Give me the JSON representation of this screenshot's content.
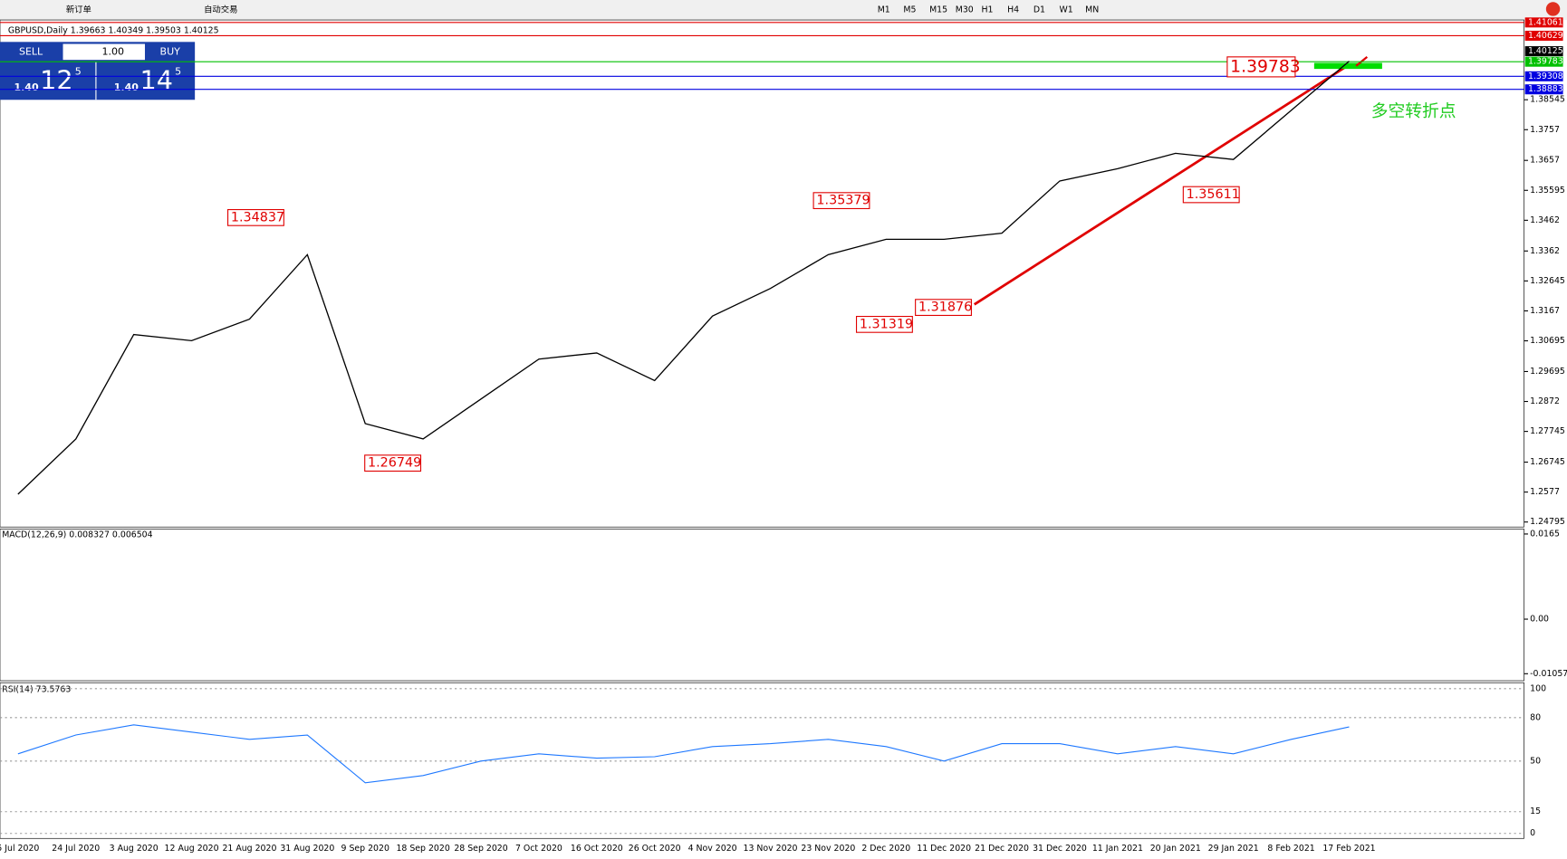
{
  "toolbar": {
    "new_order": "新订单",
    "auto_trade": "自动交易",
    "timeframes": [
      "M1",
      "M5",
      "M15",
      "M30",
      "H1",
      "H4",
      "D1",
      "W1",
      "MN"
    ]
  },
  "trade_panel": {
    "sell": "SELL",
    "buy": "BUY",
    "volume": "1.00",
    "sell_big": "1.40",
    "sell_pips": "12",
    "sell_frac": "5",
    "buy_big": "1.40",
    "buy_pips": "14",
    "buy_frac": "5"
  },
  "chart_data": [
    {
      "type": "line",
      "title": "GBPUSD,Daily  1.39663 1.40349 1.39503 1.40125",
      "categories": [
        "5 Jul 2020",
        "24 Jul 2020",
        "3 Aug 2020",
        "12 Aug 2020",
        "21 Aug 2020",
        "31 Aug 2020",
        "9 Sep 2020",
        "18 Sep 2020",
        "28 Sep 2020",
        "7 Oct 2020",
        "16 Oct 2020",
        "26 Oct 2020",
        "4 Nov 2020",
        "13 Nov 2020",
        "23 Nov 2020",
        "2 Dec 2020",
        "11 Dec 2020",
        "21 Dec 2020",
        "31 Dec 2020",
        "11 Jan 2021",
        "20 Jan 2021",
        "29 Jan 2021",
        "8 Feb 2021",
        "17 Feb 2021"
      ],
      "series": [
        {
          "name": "GBPUSD",
          "color": "#000000",
          "values": [
            1.257,
            1.275,
            1.309,
            1.307,
            1.314,
            1.335,
            1.28,
            1.275,
            1.288,
            1.301,
            1.303,
            1.294,
            1.315,
            1.324,
            1.335,
            1.34,
            1.34,
            1.342,
            1.359,
            1.363,
            1.368,
            1.366,
            1.382,
            1.398
          ]
        }
      ],
      "ylim": [
        1.24665,
        1.4098
      ],
      "yticks": [
        1.38545,
        1.3757,
        1.3657,
        1.35595,
        1.3462,
        1.3362,
        1.32645,
        1.3167,
        1.30695,
        1.29695,
        1.2872,
        1.27745,
        1.26745,
        1.2577,
        1.24795
      ],
      "levels": [
        {
          "value": 1.41061,
          "color": "#e00000"
        },
        {
          "value": 1.40629,
          "color": "#e00000"
        },
        {
          "value": 1.40125,
          "color": "#000000"
        },
        {
          "value": 1.39783,
          "color": "#00c000"
        },
        {
          "value": 1.39308,
          "color": "#0000e0"
        },
        {
          "value": 1.38883,
          "color": "#0000e0"
        }
      ],
      "annotations": [
        "1.34837",
        "1.26749",
        "1.35379",
        "1.31319",
        "1.31876",
        "1.35611",
        "1.39783"
      ],
      "note": "多空转折点"
    },
    {
      "type": "macd",
      "title": "MACD(12,26,9) 0.008327 0.006504",
      "ylim": [
        -0.010571,
        0.0165
      ],
      "yticks": [
        0.0165,
        {
          "value": 0,
          "label": "0.00"
        },
        -0.010571
      ]
    },
    {
      "type": "line",
      "title": "RSI(14) 73.5763",
      "color": "#1e78ff",
      "ylim": [
        0,
        100
      ],
      "yticks": [
        100,
        80,
        50,
        15,
        0
      ],
      "values": [
        55,
        68,
        75,
        70,
        65,
        68,
        35,
        40,
        50,
        55,
        52,
        53,
        60,
        62,
        65,
        60,
        50,
        62,
        62,
        55,
        60,
        55,
        65,
        73.5763
      ]
    }
  ]
}
